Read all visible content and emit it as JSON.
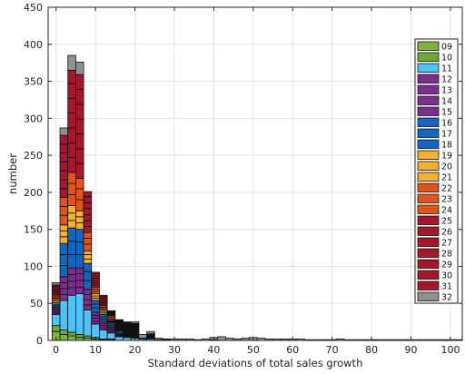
{
  "chart_data": {
    "type": "bar",
    "stacked": true,
    "title": "",
    "xlabel": "Standard deviations of total sales growth",
    "ylabel": "number",
    "xlim": [
      -2,
      103
    ],
    "ylim": [
      0,
      450
    ],
    "bin_width": 2,
    "xticks": [
      0,
      10,
      20,
      30,
      40,
      50,
      60,
      70,
      80,
      90,
      100
    ],
    "yticks": [
      0,
      50,
      100,
      150,
      200,
      250,
      300,
      350,
      400,
      450
    ],
    "grid": true,
    "legend_position": "right",
    "series_colors": {
      "09": "#7cb342",
      "10": "#72a636",
      "11": "#4fc3f7",
      "12": "#7b2d8e",
      "13": "#7b2d8e",
      "14": "#7b2d8e",
      "15": "#7b2d8e",
      "16": "#1565c0",
      "17": "#1565c0",
      "18": "#1565c0",
      "19": "#f2b134",
      "20": "#f2b134",
      "21": "#f2b134",
      "22": "#e0541c",
      "23": "#e0541c",
      "24": "#e0541c",
      "25": "#a5172d",
      "26": "#a5172d",
      "27": "#a5172d",
      "28": "#a5172d",
      "29": "#a5172d",
      "30": "#a5172d",
      "31": "#a5172d",
      "32": "#909090"
    },
    "bins_x": [
      0,
      2,
      4,
      6,
      8,
      10,
      12,
      14,
      16,
      18,
      20,
      22,
      24,
      26,
      28,
      30,
      32,
      34,
      36,
      38,
      40,
      42,
      44,
      46,
      48,
      50,
      52,
      54,
      56,
      58,
      60,
      62,
      64,
      66,
      68,
      70,
      72,
      74,
      76,
      78,
      80,
      82,
      84,
      86,
      88,
      90,
      92,
      94,
      96,
      98,
      100,
      102
    ],
    "series": [
      {
        "name": "09",
        "values": [
          12,
          8,
          6,
          4,
          3,
          2,
          1,
          1,
          0,
          0,
          0,
          0,
          0,
          0,
          0,
          0,
          0,
          0,
          0,
          0,
          0,
          0,
          0,
          0,
          0,
          0,
          0,
          0,
          0,
          0,
          0,
          0,
          0,
          0,
          0,
          0,
          0,
          0,
          0,
          0,
          0,
          0,
          0,
          0,
          0,
          0,
          0,
          0,
          0,
          0,
          0,
          0
        ]
      },
      {
        "name": "10",
        "values": [
          8,
          6,
          5,
          4,
          3,
          2,
          1,
          1,
          0,
          0,
          0,
          0,
          0,
          0,
          0,
          0,
          0,
          0,
          0,
          0,
          0,
          0,
          0,
          0,
          0,
          0,
          0,
          0,
          0,
          0,
          0,
          0,
          0,
          0,
          0,
          0,
          0,
          0,
          0,
          0,
          0,
          0,
          0,
          0,
          0,
          0,
          0,
          0,
          0,
          0,
          0,
          0
        ]
      },
      {
        "name": "11",
        "values": [
          15,
          40,
          50,
          55,
          35,
          18,
          12,
          8,
          5,
          4,
          3,
          2,
          2,
          1,
          1,
          0,
          0,
          0,
          0,
          0,
          1,
          0,
          0,
          0,
          0,
          0,
          0,
          0,
          0,
          0,
          0,
          0,
          0,
          0,
          0,
          0,
          0,
          0,
          0,
          0,
          0,
          0,
          0,
          0,
          0,
          0,
          0,
          0,
          0,
          0,
          0,
          0
        ]
      },
      {
        "name": "12",
        "values": [
          2,
          8,
          10,
          9,
          7,
          4,
          3,
          2,
          1,
          1,
          1,
          0,
          0,
          0,
          0,
          0,
          0,
          0,
          0,
          0,
          0,
          0,
          0,
          0,
          0,
          0,
          0,
          0,
          0,
          0,
          0,
          0,
          0,
          0,
          0,
          0,
          0,
          0,
          0,
          0,
          0,
          0,
          0,
          0,
          0,
          0,
          0,
          0,
          0,
          0,
          0,
          0
        ]
      },
      {
        "name": "13",
        "values": [
          2,
          8,
          9,
          9,
          7,
          4,
          3,
          2,
          1,
          1,
          1,
          0,
          0,
          0,
          0,
          0,
          0,
          0,
          0,
          0,
          0,
          0,
          0,
          0,
          0,
          0,
          0,
          0,
          0,
          0,
          0,
          0,
          0,
          0,
          0,
          0,
          0,
          0,
          0,
          0,
          0,
          0,
          0,
          0,
          0,
          0,
          0,
          0,
          0,
          0,
          0,
          0
        ]
      },
      {
        "name": "14",
        "values": [
          2,
          8,
          9,
          9,
          7,
          4,
          3,
          2,
          1,
          1,
          1,
          0,
          0,
          0,
          0,
          0,
          0,
          0,
          0,
          0,
          0,
          0,
          0,
          0,
          0,
          0,
          0,
          0,
          0,
          0,
          0,
          0,
          0,
          0,
          0,
          0,
          0,
          0,
          0,
          0,
          0,
          0,
          0,
          0,
          0,
          0,
          0,
          0,
          0,
          0,
          0,
          0
        ]
      },
      {
        "name": "15",
        "values": [
          2,
          8,
          9,
          8,
          7,
          4,
          3,
          2,
          1,
          1,
          1,
          0,
          0,
          0,
          0,
          0,
          0,
          0,
          0,
          0,
          0,
          0,
          0,
          0,
          0,
          0,
          0,
          0,
          0,
          0,
          0,
          0,
          0,
          0,
          0,
          0,
          0,
          0,
          0,
          0,
          0,
          0,
          0,
          0,
          0,
          0,
          0,
          0,
          0,
          0,
          0,
          0
        ]
      },
      {
        "name": "16",
        "values": [
          2,
          15,
          18,
          18,
          12,
          6,
          3,
          2,
          2,
          1,
          1,
          0,
          0,
          0,
          0,
          0,
          0,
          0,
          0,
          0,
          0,
          0,
          0,
          0,
          0,
          0,
          0,
          0,
          0,
          0,
          0,
          0,
          0,
          0,
          0,
          0,
          0,
          0,
          0,
          0,
          0,
          0,
          0,
          0,
          0,
          0,
          0,
          0,
          0,
          0,
          0,
          0
        ]
      },
      {
        "name": "17",
        "values": [
          2,
          15,
          18,
          17,
          12,
          5,
          3,
          2,
          2,
          1,
          1,
          0,
          0,
          0,
          0,
          0,
          0,
          0,
          0,
          0,
          0,
          0,
          0,
          0,
          0,
          0,
          0,
          0,
          0,
          0,
          0,
          0,
          0,
          0,
          0,
          0,
          0,
          0,
          0,
          0,
          0,
          0,
          0,
          0,
          0,
          0,
          0,
          0,
          0,
          0,
          0,
          0
        ]
      },
      {
        "name": "18",
        "values": [
          2,
          15,
          18,
          17,
          11,
          5,
          3,
          2,
          1,
          1,
          1,
          0,
          0,
          0,
          0,
          0,
          0,
          0,
          0,
          0,
          0,
          0,
          0,
          0,
          0,
          0,
          0,
          0,
          0,
          0,
          0,
          0,
          0,
          0,
          0,
          0,
          0,
          0,
          0,
          0,
          0,
          0,
          0,
          0,
          0,
          0,
          0,
          0,
          0,
          0,
          0,
          0
        ]
      },
      {
        "name": "19",
        "values": [
          2,
          9,
          10,
          9,
          6,
          3,
          2,
          1,
          1,
          1,
          1,
          0,
          0,
          0,
          0,
          0,
          0,
          0,
          0,
          0,
          0,
          0,
          0,
          0,
          0,
          0,
          0,
          0,
          0,
          0,
          0,
          0,
          0,
          0,
          0,
          0,
          0,
          0,
          0,
          0,
          0,
          0,
          0,
          0,
          0,
          0,
          0,
          0,
          0,
          0,
          0,
          0
        ]
      },
      {
        "name": "20",
        "values": [
          2,
          8,
          10,
          8,
          6,
          3,
          2,
          1,
          1,
          1,
          1,
          0,
          0,
          0,
          0,
          0,
          0,
          0,
          0,
          0,
          0,
          0,
          0,
          0,
          0,
          0,
          0,
          0,
          0,
          0,
          0,
          0,
          0,
          0,
          0,
          0,
          0,
          0,
          0,
          0,
          0,
          0,
          0,
          0,
          0,
          0,
          0,
          0,
          0,
          0,
          0,
          0
        ]
      },
      {
        "name": "21",
        "values": [
          2,
          8,
          10,
          8,
          5,
          3,
          2,
          1,
          1,
          1,
          1,
          0,
          0,
          0,
          0,
          0,
          0,
          0,
          0,
          0,
          0,
          0,
          0,
          0,
          0,
          0,
          0,
          0,
          0,
          0,
          0,
          0,
          0,
          0,
          0,
          0,
          0,
          0,
          0,
          0,
          0,
          0,
          0,
          0,
          0,
          0,
          0,
          0,
          0,
          0,
          0,
          0
        ]
      },
      {
        "name": "22",
        "values": [
          2,
          13,
          15,
          15,
          9,
          3,
          2,
          2,
          1,
          1,
          1,
          0,
          0,
          0,
          0,
          0,
          0,
          0,
          0,
          0,
          0,
          0,
          0,
          0,
          0,
          0,
          0,
          0,
          0,
          0,
          0,
          0,
          0,
          0,
          0,
          0,
          0,
          0,
          0,
          0,
          0,
          0,
          0,
          0,
          0,
          0,
          0,
          0,
          0,
          0,
          0,
          0
        ]
      },
      {
        "name": "23",
        "values": [
          2,
          12,
          15,
          15,
          8,
          3,
          2,
          2,
          1,
          1,
          1,
          0,
          0,
          0,
          0,
          0,
          0,
          0,
          0,
          0,
          0,
          0,
          0,
          0,
          0,
          0,
          0,
          0,
          0,
          0,
          0,
          0,
          0,
          0,
          0,
          0,
          0,
          0,
          0,
          0,
          0,
          0,
          0,
          0,
          0,
          0,
          0,
          0,
          0,
          0,
          0,
          0
        ]
      },
      {
        "name": "24",
        "values": [
          2,
          12,
          15,
          14,
          8,
          3,
          2,
          2,
          1,
          1,
          1,
          0,
          0,
          0,
          0,
          0,
          0,
          0,
          0,
          0,
          0,
          0,
          0,
          0,
          0,
          0,
          0,
          0,
          0,
          0,
          0,
          0,
          0,
          0,
          0,
          0,
          0,
          0,
          0,
          0,
          0,
          0,
          0,
          0,
          0,
          0,
          0,
          0,
          0,
          0,
          0,
          0
        ]
      },
      {
        "name": "25",
        "values": [
          2,
          12,
          20,
          20,
          8,
          3,
          2,
          1,
          1,
          1,
          1,
          1,
          1,
          0,
          0,
          0,
          0,
          0,
          0,
          0,
          0,
          0,
          0,
          0,
          0,
          0,
          0,
          0,
          0,
          0,
          0,
          0,
          0,
          0,
          0,
          0,
          0,
          0,
          0,
          0,
          0,
          0,
          0,
          0,
          0,
          0,
          0,
          0,
          0,
          0,
          0,
          0
        ]
      },
      {
        "name": "26",
        "values": [
          2,
          12,
          20,
          20,
          8,
          3,
          2,
          1,
          1,
          1,
          1,
          0,
          1,
          0,
          0,
          0,
          0,
          0,
          0,
          0,
          0,
          0,
          0,
          0,
          0,
          0,
          0,
          0,
          0,
          0,
          0,
          0,
          0,
          0,
          0,
          0,
          0,
          0,
          0,
          0,
          0,
          0,
          0,
          0,
          0,
          0,
          0,
          0,
          0,
          0,
          0,
          0
        ]
      },
      {
        "name": "27",
        "values": [
          2,
          12,
          20,
          20,
          8,
          3,
          2,
          1,
          1,
          1,
          1,
          0,
          1,
          0,
          0,
          0,
          0,
          0,
          0,
          0,
          0,
          0,
          0,
          0,
          0,
          0,
          0,
          0,
          0,
          0,
          0,
          0,
          0,
          0,
          0,
          0,
          0,
          0,
          0,
          0,
          0,
          0,
          0,
          0,
          0,
          0,
          0,
          0,
          0,
          0,
          0,
          0
        ]
      },
      {
        "name": "28",
        "values": [
          2,
          12,
          20,
          20,
          8,
          3,
          2,
          1,
          1,
          1,
          1,
          0,
          1,
          0,
          0,
          0,
          0,
          0,
          0,
          0,
          0,
          0,
          0,
          0,
          0,
          0,
          0,
          0,
          0,
          0,
          0,
          0,
          0,
          0,
          0,
          0,
          0,
          0,
          0,
          0,
          0,
          0,
          0,
          0,
          0,
          0,
          0,
          0,
          0,
          0,
          0,
          0
        ]
      },
      {
        "name": "29",
        "values": [
          2,
          12,
          20,
          20,
          8,
          3,
          2,
          1,
          1,
          1,
          1,
          0,
          1,
          0,
          0,
          0,
          0,
          0,
          0,
          0,
          0,
          0,
          0,
          0,
          0,
          0,
          0,
          0,
          0,
          0,
          0,
          0,
          0,
          0,
          0,
          0,
          0,
          0,
          0,
          0,
          0,
          0,
          0,
          0,
          0,
          0,
          0,
          0,
          0,
          0,
          0,
          0
        ]
      },
      {
        "name": "30",
        "values": [
          2,
          12,
          20,
          20,
          8,
          3,
          2,
          1,
          1,
          1,
          1,
          0,
          1,
          0,
          0,
          0,
          0,
          0,
          0,
          0,
          0,
          0,
          0,
          0,
          0,
          0,
          0,
          0,
          0,
          0,
          0,
          0,
          0,
          0,
          0,
          0,
          0,
          0,
          0,
          0,
          0,
          0,
          0,
          0,
          0,
          0,
          0,
          0,
          0,
          0,
          0,
          0
        ]
      },
      {
        "name": "31",
        "values": [
          2,
          12,
          18,
          20,
          7,
          2,
          2,
          1,
          1,
          1,
          1,
          0,
          1,
          0,
          0,
          0,
          0,
          0,
          0,
          0,
          0,
          0,
          0,
          0,
          0,
          0,
          0,
          0,
          0,
          0,
          0,
          0,
          0,
          0,
          0,
          0,
          0,
          0,
          0,
          0,
          0,
          0,
          0,
          0,
          0,
          0,
          0,
          0,
          0,
          0,
          0,
          0
        ]
      },
      {
        "name": "32",
        "values": [
          3,
          10,
          20,
          17,
          0,
          0,
          0,
          0,
          1,
          1,
          2,
          5,
          3,
          2,
          1,
          2,
          2,
          2,
          1,
          2,
          3,
          5,
          3,
          2,
          3,
          4,
          3,
          2,
          2,
          2,
          2,
          2,
          1,
          1,
          1,
          1,
          2,
          1,
          1,
          1,
          1,
          1,
          1,
          1,
          1,
          1,
          1,
          1,
          1,
          1,
          1,
          1
        ]
      }
    ]
  }
}
